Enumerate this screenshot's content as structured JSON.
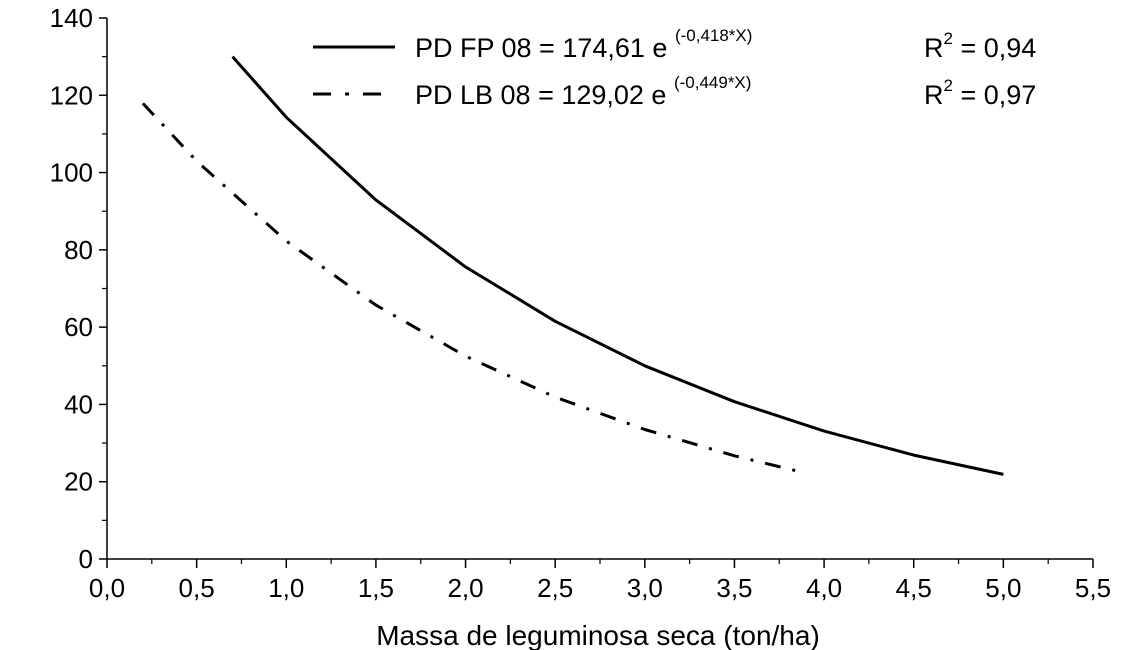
{
  "chart_data": {
    "type": "line",
    "xlabel": "Massa de leguminosa seca (ton/ha)",
    "ylabel": "",
    "xlim": [
      0.0,
      5.5
    ],
    "ylim": [
      0,
      140
    ],
    "x_ticks": [
      "0,0",
      "0,5",
      "1,0",
      "1,5",
      "2,0",
      "2,5",
      "3,0",
      "3,5",
      "4,0",
      "4,5",
      "5,0",
      "5,5"
    ],
    "y_ticks": [
      "0",
      "20",
      "40",
      "60",
      "80",
      "100",
      "120",
      "140"
    ],
    "grid": false,
    "legend_position": "top-right",
    "series": [
      {
        "name": "PD FP 08 = 174,61 e",
        "exponent": "(-0,418*X)",
        "r2_label": "R",
        "r2_sup": "2",
        "r2_value": " = 0,94",
        "line_style": "solid",
        "color": "#000000",
        "x_range": [
          0.7,
          5.0
        ],
        "x": [
          0.7,
          1.0,
          1.5,
          2.0,
          2.5,
          3.0,
          3.5,
          4.0,
          4.5,
          5.0
        ],
        "y": [
          130.0,
          114.3,
          92.9,
          75.6,
          61.5,
          50.0,
          40.7,
          33.1,
          26.9,
          21.9
        ]
      },
      {
        "name": "PD LB 08 = 129,02 e",
        "exponent": "(-0,449*X)",
        "r2_label": "R",
        "r2_sup": "2",
        "r2_value": " = 0,97",
        "line_style": "dash-dot",
        "color": "#000000",
        "x_range": [
          0.2,
          3.9
        ],
        "x": [
          0.2,
          0.5,
          1.0,
          1.5,
          2.0,
          2.5,
          3.0,
          3.5,
          3.9
        ],
        "y": [
          117.9,
          103.0,
          82.3,
          65.7,
          52.5,
          41.9,
          33.5,
          26.7,
          22.2
        ]
      }
    ]
  }
}
